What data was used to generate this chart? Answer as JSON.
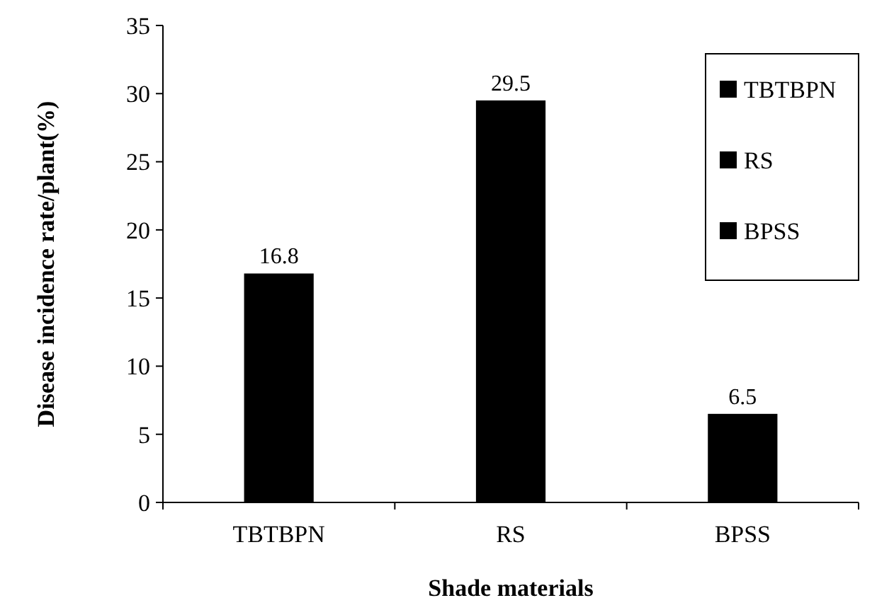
{
  "chart_data": {
    "type": "bar",
    "xlabel": "Shade materials",
    "ylabel": "Disease incidence rate/plant(%)",
    "categories": [
      "TBTBPN",
      "RS",
      "BPSS"
    ],
    "series": [
      {
        "name": "TBTBPN",
        "color": "#000000",
        "values": [
          16.8,
          null,
          null
        ]
      },
      {
        "name": "RS",
        "color": "#000000",
        "values": [
          null,
          29.5,
          null
        ]
      },
      {
        "name": "BPSS",
        "color": "#000000",
        "values": [
          null,
          null,
          6.5
        ]
      }
    ],
    "ylim": [
      0,
      35
    ],
    "yticks": [
      0,
      5,
      10,
      15,
      20,
      25,
      30,
      35
    ],
    "data_labels": true,
    "legend": "top right",
    "grid": false
  }
}
